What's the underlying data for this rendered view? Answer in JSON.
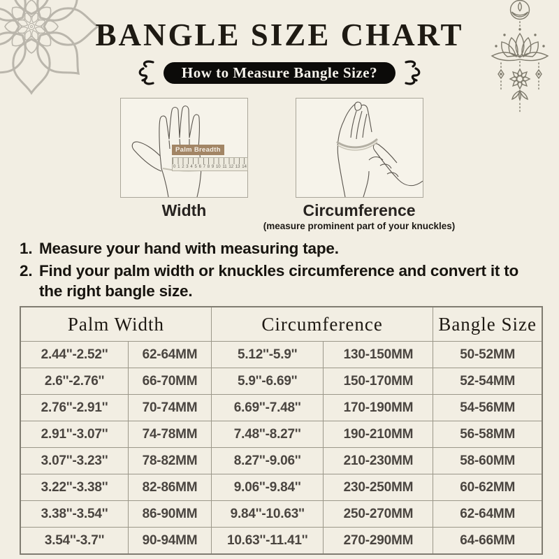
{
  "header": {
    "title": "BANGLE SIZE CHART",
    "subtitle": "How to Measure Bangle Size?"
  },
  "illustrations": {
    "width": {
      "caption": "Width",
      "ruler_label": "Palm Breadth",
      "ruler_numbers": [
        "0",
        "1",
        "2",
        "3",
        "4",
        "5",
        "6",
        "7",
        "8",
        "9",
        "10",
        "11",
        "12",
        "13",
        "14"
      ]
    },
    "circumference": {
      "caption": "Circumference",
      "note": "(measure prominent part of your knuckles)"
    }
  },
  "instructions": [
    {
      "number": "1.",
      "text": "Measure your hand with measuring tape."
    },
    {
      "number": "2.",
      "text": "Find your palm width or knuckles circumference and convert it to the right bangle size."
    }
  ],
  "table": {
    "headers": [
      "Palm Width",
      "Circumference",
      "Bangle Size"
    ],
    "rows": [
      [
        "2.44''-2.52''",
        "62-64MM",
        "5.12''-5.9''",
        "130-150MM",
        "50-52MM"
      ],
      [
        "2.6''-2.76''",
        "66-70MM",
        "5.9''-6.69''",
        "150-170MM",
        "52-54MM"
      ],
      [
        "2.76''-2.91''",
        "70-74MM",
        "6.69''-7.48''",
        "170-190MM",
        "54-56MM"
      ],
      [
        "2.91''-3.07''",
        "74-78MM",
        "7.48''-8.27''",
        "190-210MM",
        "56-58MM"
      ],
      [
        "3.07''-3.23''",
        "78-82MM",
        "8.27''-9.06''",
        "210-230MM",
        "58-60MM"
      ],
      [
        "3.22''-3.38''",
        "82-86MM",
        "9.06''-9.84''",
        "230-250MM",
        "60-62MM"
      ],
      [
        "3.38''-3.54''",
        "86-90MM",
        "9.84''-10.63''",
        "250-270MM",
        "62-64MM"
      ],
      [
        "3.54''-3.7''",
        "90-94MM",
        "10.63''-11.41''",
        "270-290MM",
        "64-66MM"
      ]
    ]
  },
  "colors": {
    "background": "#f2eee3",
    "pill_background": "#0c0b09",
    "pill_text": "#f6f3ec",
    "title_text": "#1e1a13",
    "ruler_label_background": "#a28565",
    "table_border": "#9b9789",
    "table_body_text": "#4a4540"
  }
}
